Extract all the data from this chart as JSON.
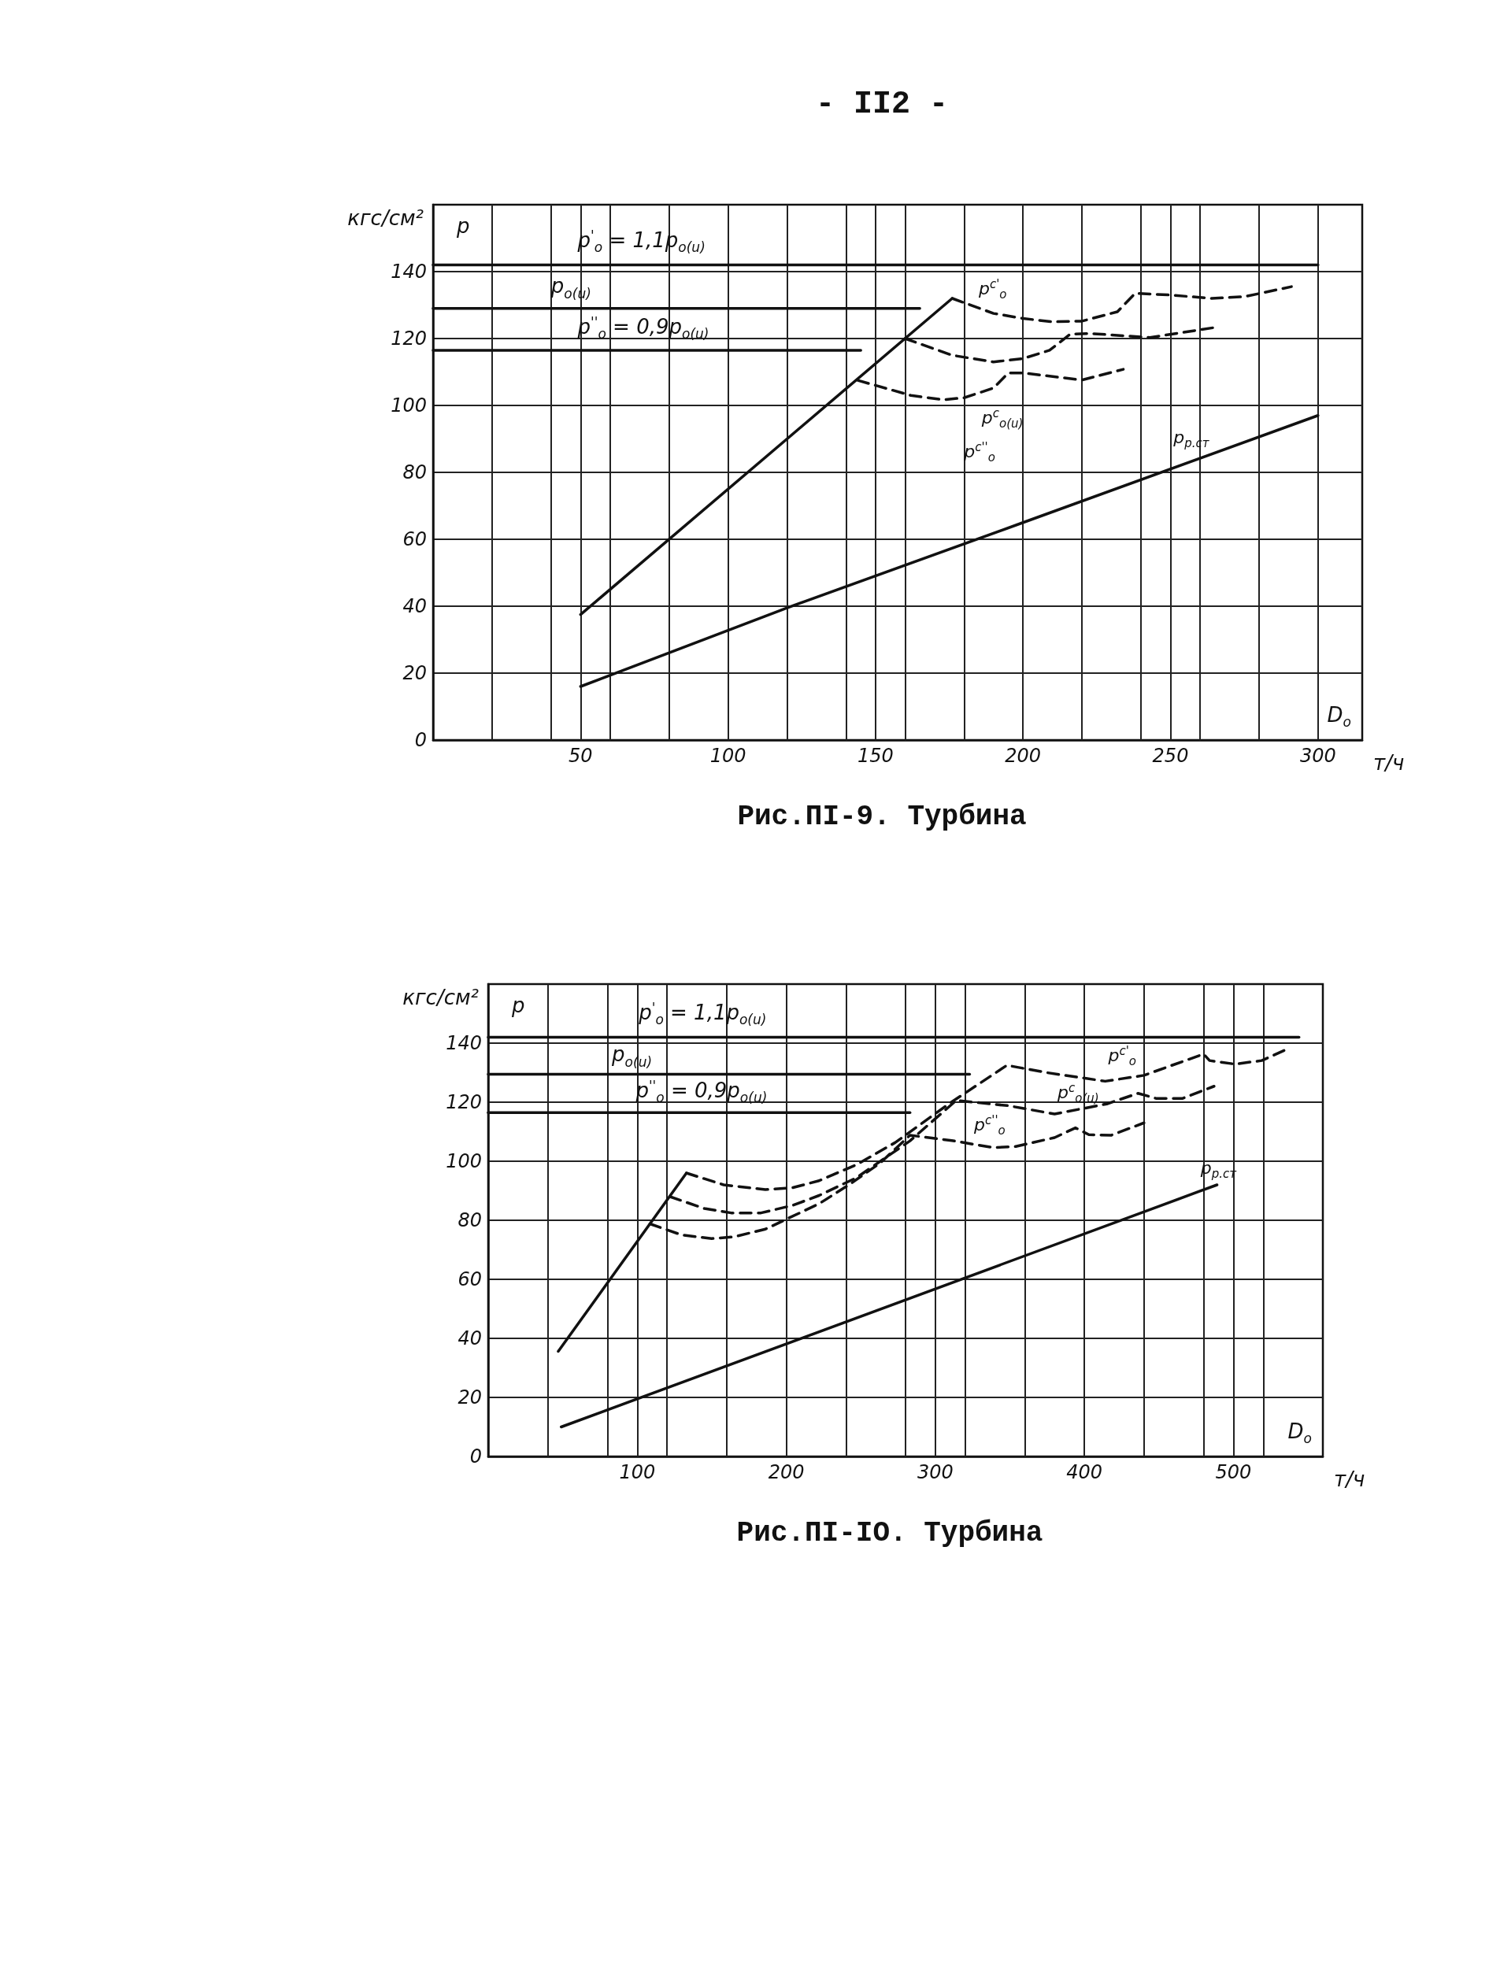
{
  "chart_data": [
    {
      "type": "line",
      "title": "Рис.ПI-9. Турбина",
      "xlabel": "D$_{o}$",
      "ylabel": "p",
      "xlim": [
        0,
        315
      ],
      "ylim": [
        0,
        160
      ],
      "xticks": [
        {
          "value": 20,
          "label": null
        },
        {
          "value": 40,
          "label": null
        },
        50,
        {
          "value": 60,
          "label": null
        },
        {
          "value": 80,
          "label": null
        },
        100,
        {
          "value": 120,
          "label": null
        },
        {
          "value": 140,
          "label": null
        },
        150,
        {
          "value": 160,
          "label": null
        },
        {
          "value": 180,
          "label": null
        },
        200,
        {
          "value": 220,
          "label": null
        },
        {
          "value": 240,
          "label": null
        },
        250,
        {
          "value": 260,
          "label": null
        },
        {
          "value": 280,
          "label": null
        },
        300
      ],
      "yticks": [
        0,
        20,
        40,
        60,
        80,
        100,
        120,
        140
      ],
      "grid": true,
      "marker": "none",
      "series": [
        {
          "color": "#111111",
          "line_style": "solid",
          "x": [
            0,
            300
          ],
          "values": [
            142,
            142
          ]
        },
        {
          "color": "#111111",
          "line_style": "solid",
          "x": [
            0,
            165
          ],
          "values": [
            129,
            129
          ]
        },
        {
          "color": "#111111",
          "line_style": "solid",
          "x": [
            0,
            145
          ],
          "values": [
            116.5,
            116.5
          ]
        },
        {
          "color": "#111111",
          "line_style": "solid",
          "x": [
            50,
            176
          ],
          "values": [
            37.5,
            132
          ]
        },
        {
          "color": "#111111",
          "line_style": "solid",
          "x": [
            50,
            120,
            200,
            300
          ],
          "values": [
            16,
            39.5,
            65,
            97
          ]
        },
        {
          "color": "#111111",
          "line_style": "dashed",
          "x": [
            176,
            190,
            200,
            210,
            220,
            232,
            238,
            250,
            264,
            275,
            291
          ],
          "values": [
            132,
            127.5,
            126,
            125,
            125.2,
            128,
            133.5,
            133,
            132,
            132.5,
            135.5
          ]
        },
        {
          "color": "#111111",
          "line_style": "dashed",
          "x": [
            160,
            176,
            190,
            200,
            209,
            216,
            223,
            243,
            265
          ],
          "values": [
            120,
            115,
            113,
            114,
            116.5,
            121.3,
            121.5,
            120.3,
            123.3
          ]
        },
        {
          "color": "#111111",
          "line_style": "dashed",
          "x": [
            144,
            162,
            173,
            180,
            190,
            195,
            200,
            220,
            234
          ],
          "values": [
            107.5,
            103,
            101.7,
            102.3,
            105.2,
            109.7,
            109.7,
            107.6,
            110.8
          ]
        }
      ],
      "annotations": [
        "кгс/см²",
        "т/ч",
        "- II2 -",
        "p$^{'}$$_{o}$ = 1,1p$_{o(u)}$",
        "p$_{o(u)}$",
        "p$^{''}$$_{o}$ = 0,9p$_{o(u)}$",
        "p$^{c'}$$_{o}$",
        "p$^{c}$$_{o(u)}$",
        "p$^{c''}$$_{o}$",
        "p$_{p.ст}$"
      ]
    },
    {
      "type": "line",
      "title": "Рис.ПI-IO. Турбина",
      "xlabel": "D$_{o}$",
      "ylabel": "p",
      "xlim": [
        0,
        560
      ],
      "ylim": [
        0,
        160
      ],
      "xticks": [
        {
          "value": 40,
          "label": null
        },
        {
          "value": 80,
          "label": null
        },
        100,
        {
          "value": 120,
          "label": null
        },
        {
          "value": 160,
          "label": null
        },
        200,
        {
          "value": 240,
          "label": null
        },
        {
          "value": 280,
          "label": null
        },
        300,
        {
          "value": 320,
          "label": null
        },
        {
          "value": 360,
          "label": null
        },
        400,
        {
          "value": 440,
          "label": null
        },
        {
          "value": 480,
          "label": null
        },
        500,
        {
          "value": 520,
          "label": null
        }
      ],
      "yticks": [
        0,
        20,
        40,
        60,
        80,
        100,
        120,
        140
      ],
      "grid": true,
      "marker": "none",
      "series": [
        {
          "color": "#111111",
          "line_style": "solid",
          "x": [
            0,
            544
          ],
          "values": [
            142,
            142
          ]
        },
        {
          "color": "#111111",
          "line_style": "solid",
          "x": [
            0,
            323
          ],
          "values": [
            129.5,
            129.5
          ]
        },
        {
          "color": "#111111",
          "line_style": "solid",
          "x": [
            0,
            283
          ],
          "values": [
            116.5,
            116.5
          ]
        },
        {
          "color": "#111111",
          "line_style": "solid",
          "x": [
            47,
            133
          ],
          "values": [
            35.6,
            96
          ]
        },
        {
          "color": "#111111",
          "line_style": "solid",
          "x": [
            49,
            489
          ],
          "values": [
            10,
            92
          ]
        },
        {
          "color": "#111111",
          "line_style": "dashed",
          "x": [
            133,
            158,
            186,
            204,
            222,
            247,
            273,
            309,
            348,
            375,
            414,
            440,
            466,
            480,
            484,
            501,
            519,
            534
          ],
          "values": [
            96,
            92,
            90.4,
            91,
            93.4,
            98.8,
            106.3,
            119.4,
            132.5,
            130,
            127.1,
            129.1,
            133.8,
            136.3,
            134.1,
            132.9,
            134.1,
            137.5
          ]
        },
        {
          "color": "#111111",
          "line_style": "dashed",
          "x": [
            122,
            145,
            163,
            183,
            204,
            222,
            247,
            283,
            314,
            349,
            380,
            415,
            436,
            448,
            466,
            487
          ],
          "values": [
            88,
            84,
            82.5,
            82.5,
            85,
            88.4,
            94.4,
            106.9,
            120.6,
            118.8,
            116,
            119.4,
            123,
            121.3,
            121.3,
            125.4
          ]
        },
        {
          "color": "#111111",
          "line_style": "dashed",
          "x": [
            108.5,
            130,
            150,
            165,
            186,
            201,
            222,
            242,
            263,
            283,
            311,
            339,
            354,
            380,
            394,
            403,
            418,
            440
          ],
          "values": [
            78.8,
            75,
            73.8,
            74.4,
            77,
            80.6,
            85.6,
            92,
            99.4,
            108.8,
            107,
            104.6,
            105,
            108,
            111.3,
            109,
            108.8,
            113
          ]
        }
      ],
      "annotations": [
        "кгс/см²",
        "т/ч",
        "p$^{'}$$_{o}$ = 1,1p$_{o(u)}$",
        "p$_{o(u)}$",
        "p$^{''}$$_{o}$ = 0,9p$_{o(u)}$",
        "p$^{c'}$$_{o}$",
        "p$^{c}$$_{o(u)}$",
        "p$^{c''}$$_{o}$",
        "p$_{p.ст}$"
      ]
    }
  ]
}
